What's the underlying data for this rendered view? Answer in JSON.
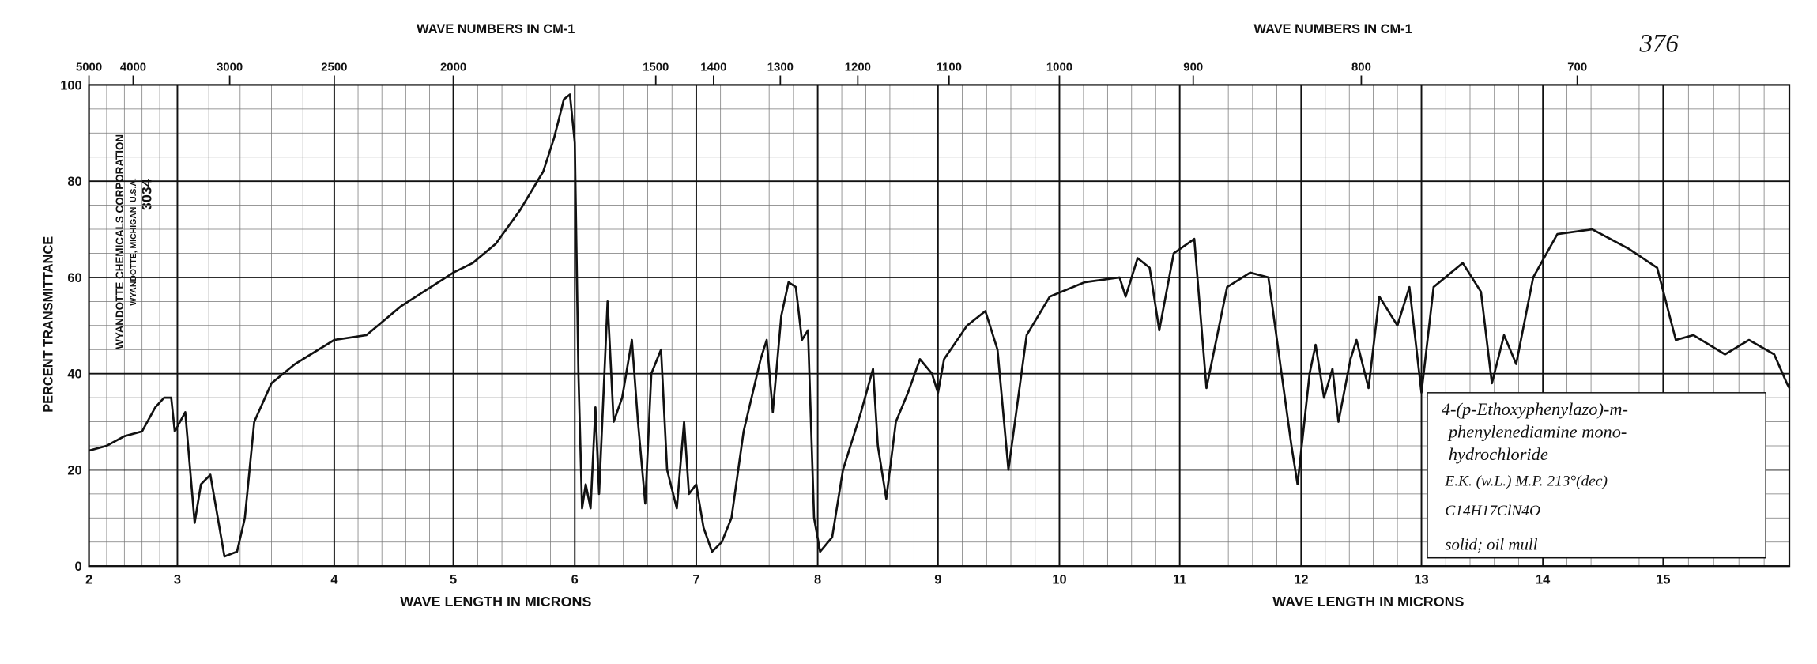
{
  "chart_data": {
    "type": "line",
    "top_axis_title": "WAVE NUMBERS IN CM-1",
    "top_axis_title_2": "WAVE NUMBERS IN CM-1",
    "x_axis_title": "WAVE LENGTH IN MICRONS",
    "x_axis_title_2": "WAVE LENGTH IN MICRONS",
    "y_axis_title": "PERCENT TRANSMITTANCE",
    "spectrum_number": "376",
    "stamp": [
      "WYANDOTTE CHEMICALS CORPORATION",
      "WYANDOTTE, MICHIGAN, U.S.A.",
      "3034"
    ],
    "annotation": [
      "4-(p-Ethoxyphenylazo)-m-",
      "phenylenediamine mono-",
      "hydrochloride",
      "E.K. (w.L.)   M.P. 213°(dec)",
      "C14H17ClN4O",
      "solid; oil mull"
    ],
    "xlim": [
      2,
      16
    ],
    "xticks": [
      2,
      3,
      4,
      5,
      6,
      7,
      8,
      9,
      10,
      11,
      12,
      13,
      14,
      15
    ],
    "top_ticks": [
      5000,
      4000,
      3000,
      2500,
      2000,
      1500,
      1400,
      1300,
      1200,
      1100,
      1000,
      900,
      800,
      700
    ],
    "ylim": [
      0,
      100
    ],
    "yticks": [
      0,
      20,
      40,
      60,
      80,
      100
    ],
    "grid": true,
    "series": [
      {
        "name": "spectrum",
        "color": "#111111",
        "x": [
          2.0,
          2.2,
          2.4,
          2.6,
          2.75,
          2.85,
          2.93,
          2.97,
          3.0,
          3.05,
          3.11,
          3.15,
          3.21,
          3.3,
          3.38,
          3.43,
          3.49,
          3.6,
          3.75,
          4.0,
          4.27,
          4.56,
          5.0,
          5.16,
          5.35,
          5.55,
          5.74,
          5.83,
          5.91,
          5.96,
          6.0,
          6.03,
          6.06,
          6.09,
          6.13,
          6.17,
          6.2,
          6.27,
          6.32,
          6.39,
          6.47,
          6.52,
          6.58,
          6.63,
          6.71,
          6.76,
          6.84,
          6.9,
          6.94,
          7.0,
          7.06,
          7.13,
          7.21,
          7.29,
          7.39,
          7.53,
          7.58,
          7.63,
          7.7,
          7.76,
          7.82,
          7.87,
          7.92,
          7.97,
          8.02,
          8.12,
          8.21,
          8.36,
          8.46,
          8.5,
          8.57,
          8.65,
          8.75,
          8.85,
          8.95,
          9.0,
          9.05,
          9.24,
          9.39,
          9.49,
          9.58,
          9.73,
          9.92,
          10.21,
          10.5,
          10.55,
          10.65,
          10.75,
          10.83,
          10.95,
          11.12,
          11.22,
          11.39,
          11.58,
          11.73,
          11.92,
          11.97,
          12.07,
          12.12,
          12.19,
          12.26,
          12.31,
          12.41,
          12.46,
          12.56,
          12.65,
          12.8,
          12.9,
          13.0,
          13.1,
          13.34,
          13.49,
          13.58,
          13.68,
          13.78,
          13.92,
          14.12,
          14.41,
          14.71,
          14.95,
          15.1,
          15.24,
          15.49,
          15.68,
          15.88,
          15.98,
          16.0
        ],
        "values": [
          24,
          25,
          27,
          28,
          33,
          35,
          35,
          28,
          29,
          32,
          9,
          17,
          19,
          2,
          3,
          10,
          30,
          38,
          42,
          47,
          48,
          54,
          61,
          63,
          67,
          74,
          82,
          89,
          97,
          98,
          88,
          40,
          12,
          17,
          12,
          33,
          15,
          55,
          30,
          35,
          47,
          30,
          13,
          40,
          45,
          20,
          12,
          30,
          15,
          17,
          8,
          3,
          5,
          10,
          28,
          43,
          47,
          32,
          52,
          59,
          58,
          47,
          49,
          10,
          3,
          6,
          20,
          32,
          41,
          25,
          14,
          30,
          36,
          43,
          40,
          36,
          43,
          50,
          53,
          45,
          20,
          48,
          56,
          59,
          60,
          56,
          64,
          62,
          49,
          65,
          68,
          37,
          58,
          61,
          60,
          25,
          17,
          40,
          46,
          35,
          41,
          30,
          43,
          47,
          37,
          56,
          50,
          58,
          36,
          58,
          63,
          57,
          38,
          48,
          42,
          60,
          69,
          70,
          66,
          62,
          47,
          48,
          44,
          47,
          44,
          38,
          37
        ]
      }
    ]
  }
}
